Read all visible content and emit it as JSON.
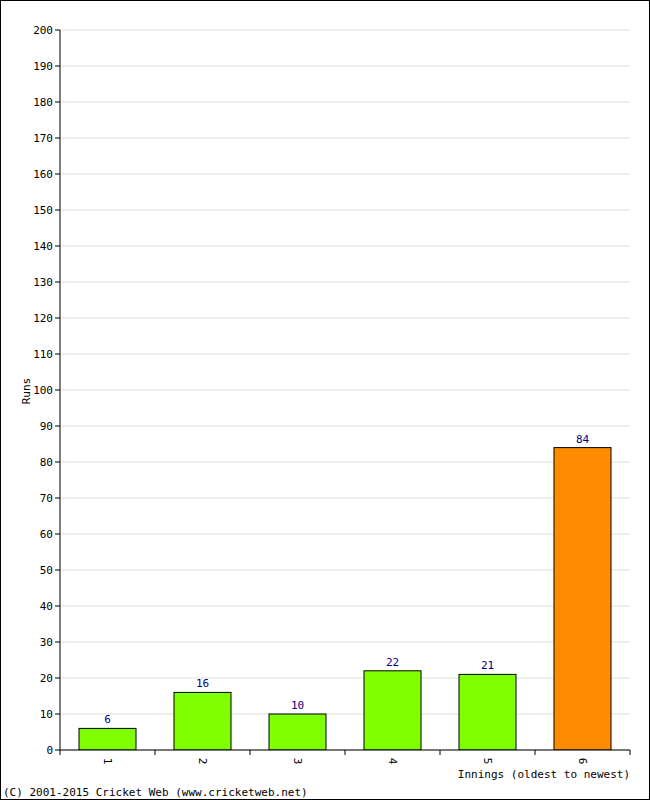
{
  "chart_data": {
    "type": "bar",
    "x_label": "Innings (oldest to newest)",
    "y_label": "Runs",
    "annotations": [
      "(C) 2001-2015 Cricket Web (www.cricketweb.net)"
    ],
    "categories": [
      "1",
      "2",
      "3",
      "4",
      "5",
      "6"
    ],
    "values": [
      6,
      16,
      10,
      22,
      21,
      84
    ],
    "colors": [
      "#7fff00",
      "#7fff00",
      "#7fff00",
      "#7fff00",
      "#7fff00",
      "#ff8c00"
    ],
    "ylim": [
      0,
      200
    ],
    "yticks": [
      0,
      10,
      20,
      30,
      40,
      50,
      60,
      70,
      80,
      90,
      100,
      110,
      120,
      130,
      140,
      150,
      160,
      170,
      180,
      190,
      200
    ],
    "grid": true,
    "data_labels": true
  }
}
